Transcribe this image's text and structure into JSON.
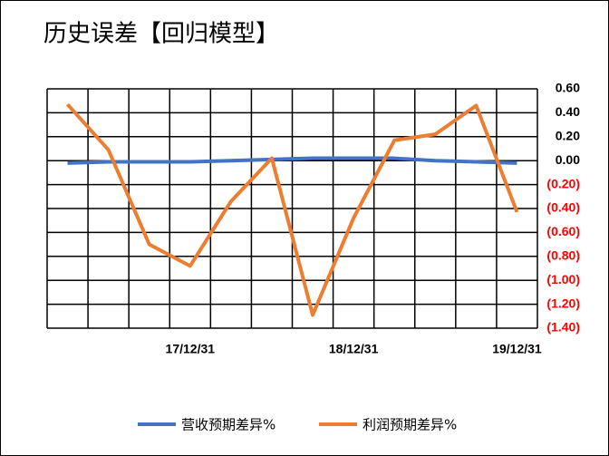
{
  "chart_data": {
    "type": "line",
    "title": "历史误差【回归模型】",
    "categories": [
      null,
      null,
      null,
      "17/12/31",
      null,
      null,
      null,
      "18/12/31",
      null,
      null,
      null,
      "19/12/31"
    ],
    "series": [
      {
        "name": "营收预期差异%",
        "color": "#4472c4",
        "values": [
          -0.02,
          -0.01,
          -0.01,
          -0.01,
          0.0,
          0.01,
          0.02,
          0.02,
          0.02,
          0.0,
          -0.01,
          -0.02
        ]
      },
      {
        "name": "利润预期差异%",
        "color": "#ed7d31",
        "values": [
          0.47,
          0.09,
          -0.7,
          -0.88,
          -0.34,
          0.02,
          -1.29,
          -0.48,
          0.17,
          0.22,
          0.46,
          -0.43
        ]
      }
    ],
    "ylim": [
      -1.4,
      0.6
    ],
    "yticks": [
      {
        "value": 0.6,
        "label": "0.60"
      },
      {
        "value": 0.4,
        "label": "0.40"
      },
      {
        "value": 0.2,
        "label": "0.20"
      },
      {
        "value": 0,
        "label": "0.00"
      },
      {
        "value": -0.2,
        "label": "(0.20)"
      },
      {
        "value": -0.4,
        "label": "(0.40)"
      },
      {
        "value": -0.6,
        "label": "(0.60)"
      },
      {
        "value": -0.8,
        "label": "(0.80)"
      },
      {
        "value": -1.0,
        "label": "(1.00)"
      },
      {
        "value": -1.2,
        "label": "(1.20)"
      },
      {
        "value": -1.4,
        "label": "(1.40)"
      }
    ],
    "negative_tick_color": "#ff0000",
    "grid": true,
    "legend": "bottom"
  }
}
